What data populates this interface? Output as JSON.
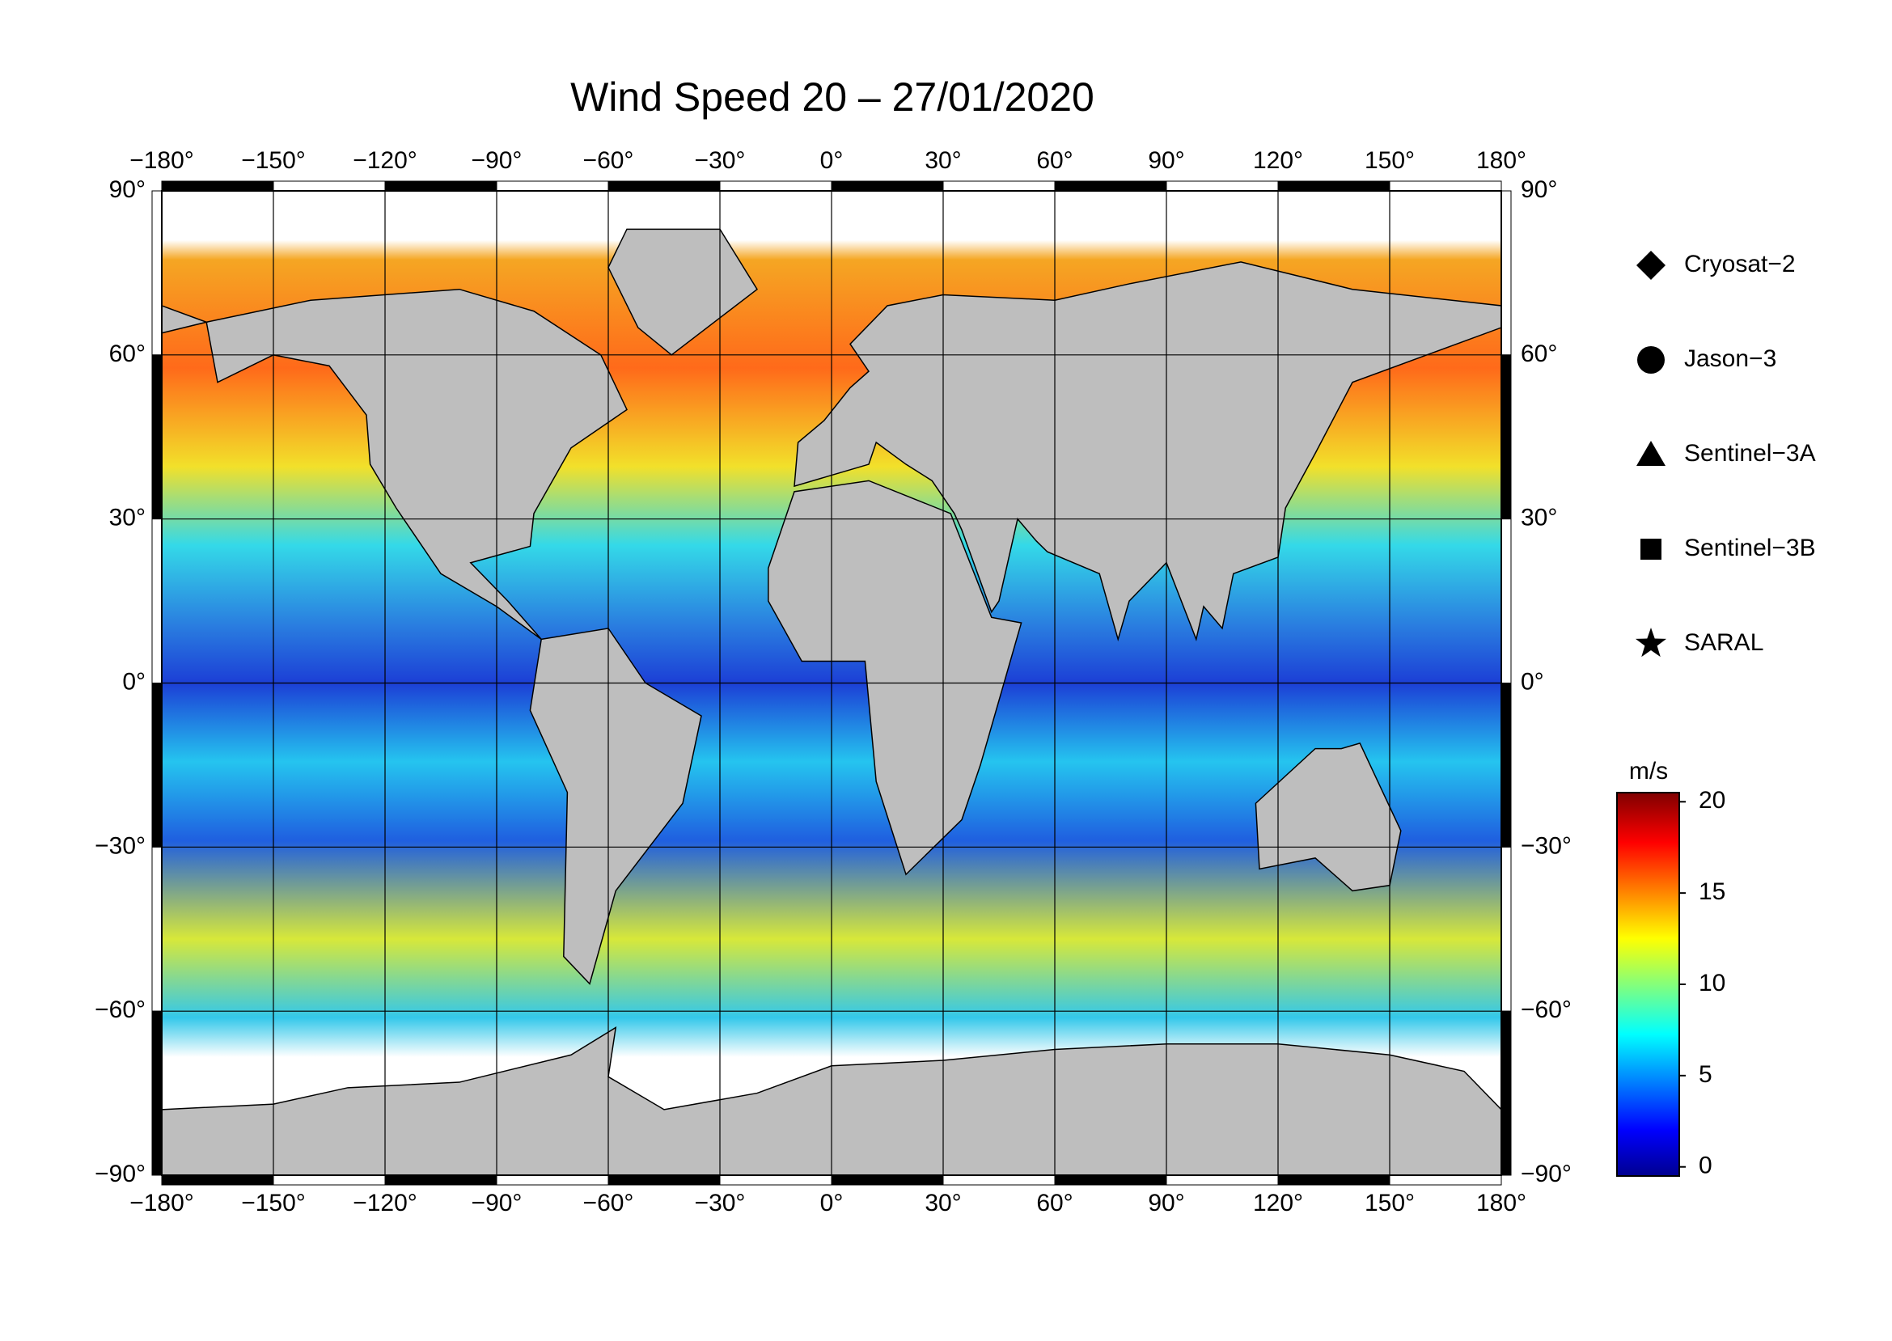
{
  "title": "Wind Speed 20 – 27/01/2020",
  "lon_ticks": [
    {
      "value": -180,
      "label": "−180°"
    },
    {
      "value": -150,
      "label": "−150°"
    },
    {
      "value": -120,
      "label": "−120°"
    },
    {
      "value": -90,
      "label": "−90°"
    },
    {
      "value": -60,
      "label": "−60°"
    },
    {
      "value": -30,
      "label": "−30°"
    },
    {
      "value": 0,
      "label": "0°"
    },
    {
      "value": 30,
      "label": "30°"
    },
    {
      "value": 60,
      "label": "60°"
    },
    {
      "value": 90,
      "label": "90°"
    },
    {
      "value": 120,
      "label": "120°"
    },
    {
      "value": 150,
      "label": "150°"
    },
    {
      "value": 180,
      "label": "180°"
    }
  ],
  "lat_ticks": [
    {
      "value": 90,
      "label": "90°"
    },
    {
      "value": 60,
      "label": "60°"
    },
    {
      "value": 30,
      "label": "30°"
    },
    {
      "value": 0,
      "label": "0°"
    },
    {
      "value": -30,
      "label": "−30°"
    },
    {
      "value": -60,
      "label": "−60°"
    },
    {
      "value": -90,
      "label": "−90°"
    }
  ],
  "legend": [
    {
      "name": "Cryosat−2",
      "marker": "diamond"
    },
    {
      "name": "Jason−3",
      "marker": "circle"
    },
    {
      "name": "Sentinel−3A",
      "marker": "triangle"
    },
    {
      "name": "Sentinel−3B",
      "marker": "square"
    },
    {
      "name": "SARAL",
      "marker": "star"
    }
  ],
  "colorbar": {
    "unit": "m/s",
    "range": [
      -0.5,
      20.5
    ],
    "ticks": [
      0,
      5,
      10,
      15,
      20
    ]
  }
}
